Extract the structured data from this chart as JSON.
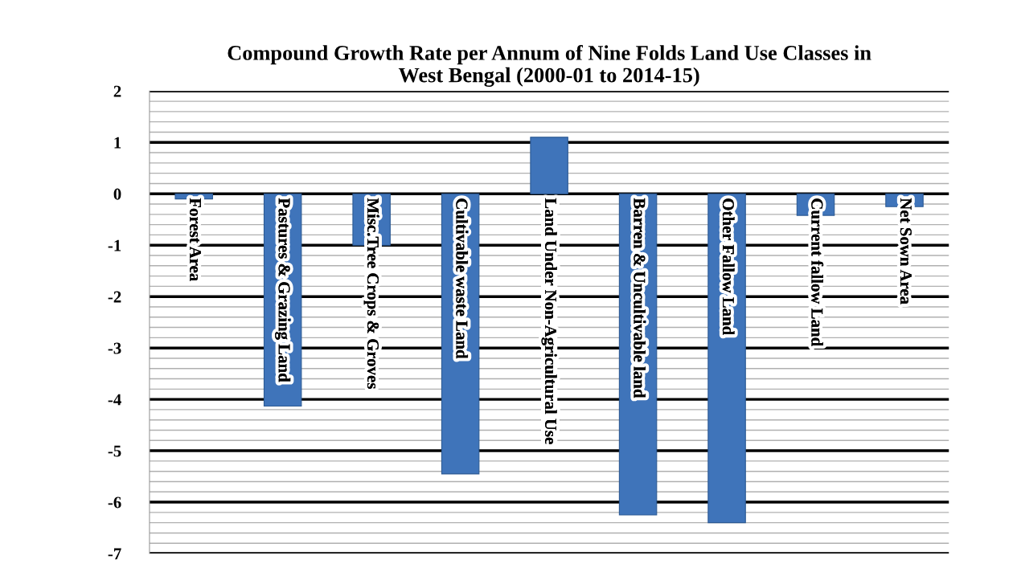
{
  "chart_data": {
    "type": "bar",
    "title": "Compound Growth Rate per Annum of Nine Folds Land Use Classes in\nWest Bengal (2000-01 to 2014-15)",
    "categories": [
      "Forest Area",
      "Pastures & Grazing Land",
      "Misc.Tree Crops & Groves",
      "Cultivable waste Land",
      "Land Under Non-Agricultural Use",
      "Barren & Uncultivable land",
      "Other Fallow Land",
      "Current fallow Land",
      "Net Sown Area"
    ],
    "values": [
      -0.1,
      -4.13,
      -1.0,
      -5.45,
      1.1,
      -6.25,
      -6.4,
      -0.42,
      -0.25
    ],
    "color": "#3f74ba",
    "ylim": [
      -7,
      2
    ],
    "yticks": [
      -7,
      -6,
      -5,
      -4,
      -3,
      -2,
      -1,
      0,
      1,
      2
    ],
    "grid": "y"
  }
}
